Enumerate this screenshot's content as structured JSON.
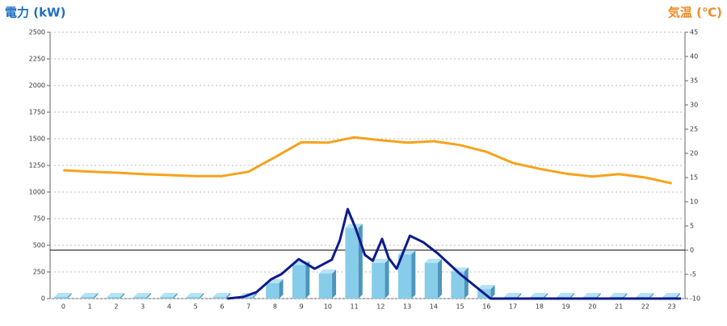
{
  "chart_data": {
    "type": "bar",
    "y_label": "電力 (kW)",
    "y2_label": "気温 (℃)",
    "categories": [
      "0",
      "1",
      "2",
      "3",
      "4",
      "5",
      "6",
      "7",
      "8",
      "9",
      "10",
      "11",
      "12",
      "13",
      "14",
      "15",
      "16",
      "17",
      "18",
      "19",
      "20",
      "21",
      "22",
      "23"
    ],
    "ylim": [
      0,
      2500
    ],
    "yticks": [
      0,
      250,
      500,
      750,
      1000,
      1250,
      1500,
      1750,
      2000,
      2250,
      2500
    ],
    "y2lim": [
      -10,
      45
    ],
    "y2ticks": [
      -10,
      -5,
      0,
      5,
      10,
      15,
      20,
      25,
      30,
      35,
      40,
      45
    ],
    "grid": true,
    "series": [
      {
        "type": "bar",
        "color": "#87cdea",
        "values": [
          0,
          0,
          0,
          0,
          0,
          0,
          0,
          0,
          130,
          300,
          220,
          650,
          320,
          400,
          320,
          240,
          75,
          0,
          0,
          0,
          0,
          0,
          0,
          0
        ]
      },
      {
        "type": "line",
        "color": "#0d1a8c",
        "x": [
          6.2,
          6.8,
          7.3,
          7.85,
          8.25,
          8.9,
          9.5,
          10.15,
          10.45,
          10.75,
          11.05,
          11.4,
          11.7,
          12.05,
          12.3,
          12.6,
          13.1,
          13.6,
          14.15,
          15,
          16.15,
          23.35
        ],
        "values": [
          0,
          15,
          60,
          180,
          230,
          370,
          280,
          365,
          545,
          840,
          660,
          410,
          355,
          560,
          380,
          280,
          590,
          530,
          425,
          230,
          0,
          0
        ]
      },
      {
        "type": "line",
        "axis": "y2",
        "color": "#f7a21b",
        "values": [
          16.5,
          16.2,
          16,
          15.7,
          15.5,
          15.3,
          15.3,
          16.2,
          19.2,
          22.3,
          22.2,
          23.3,
          22.7,
          22.2,
          22.5,
          21.7,
          20.3,
          18,
          16.8,
          15.8,
          15.2,
          15.7,
          15,
          13.8
        ]
      }
    ]
  }
}
